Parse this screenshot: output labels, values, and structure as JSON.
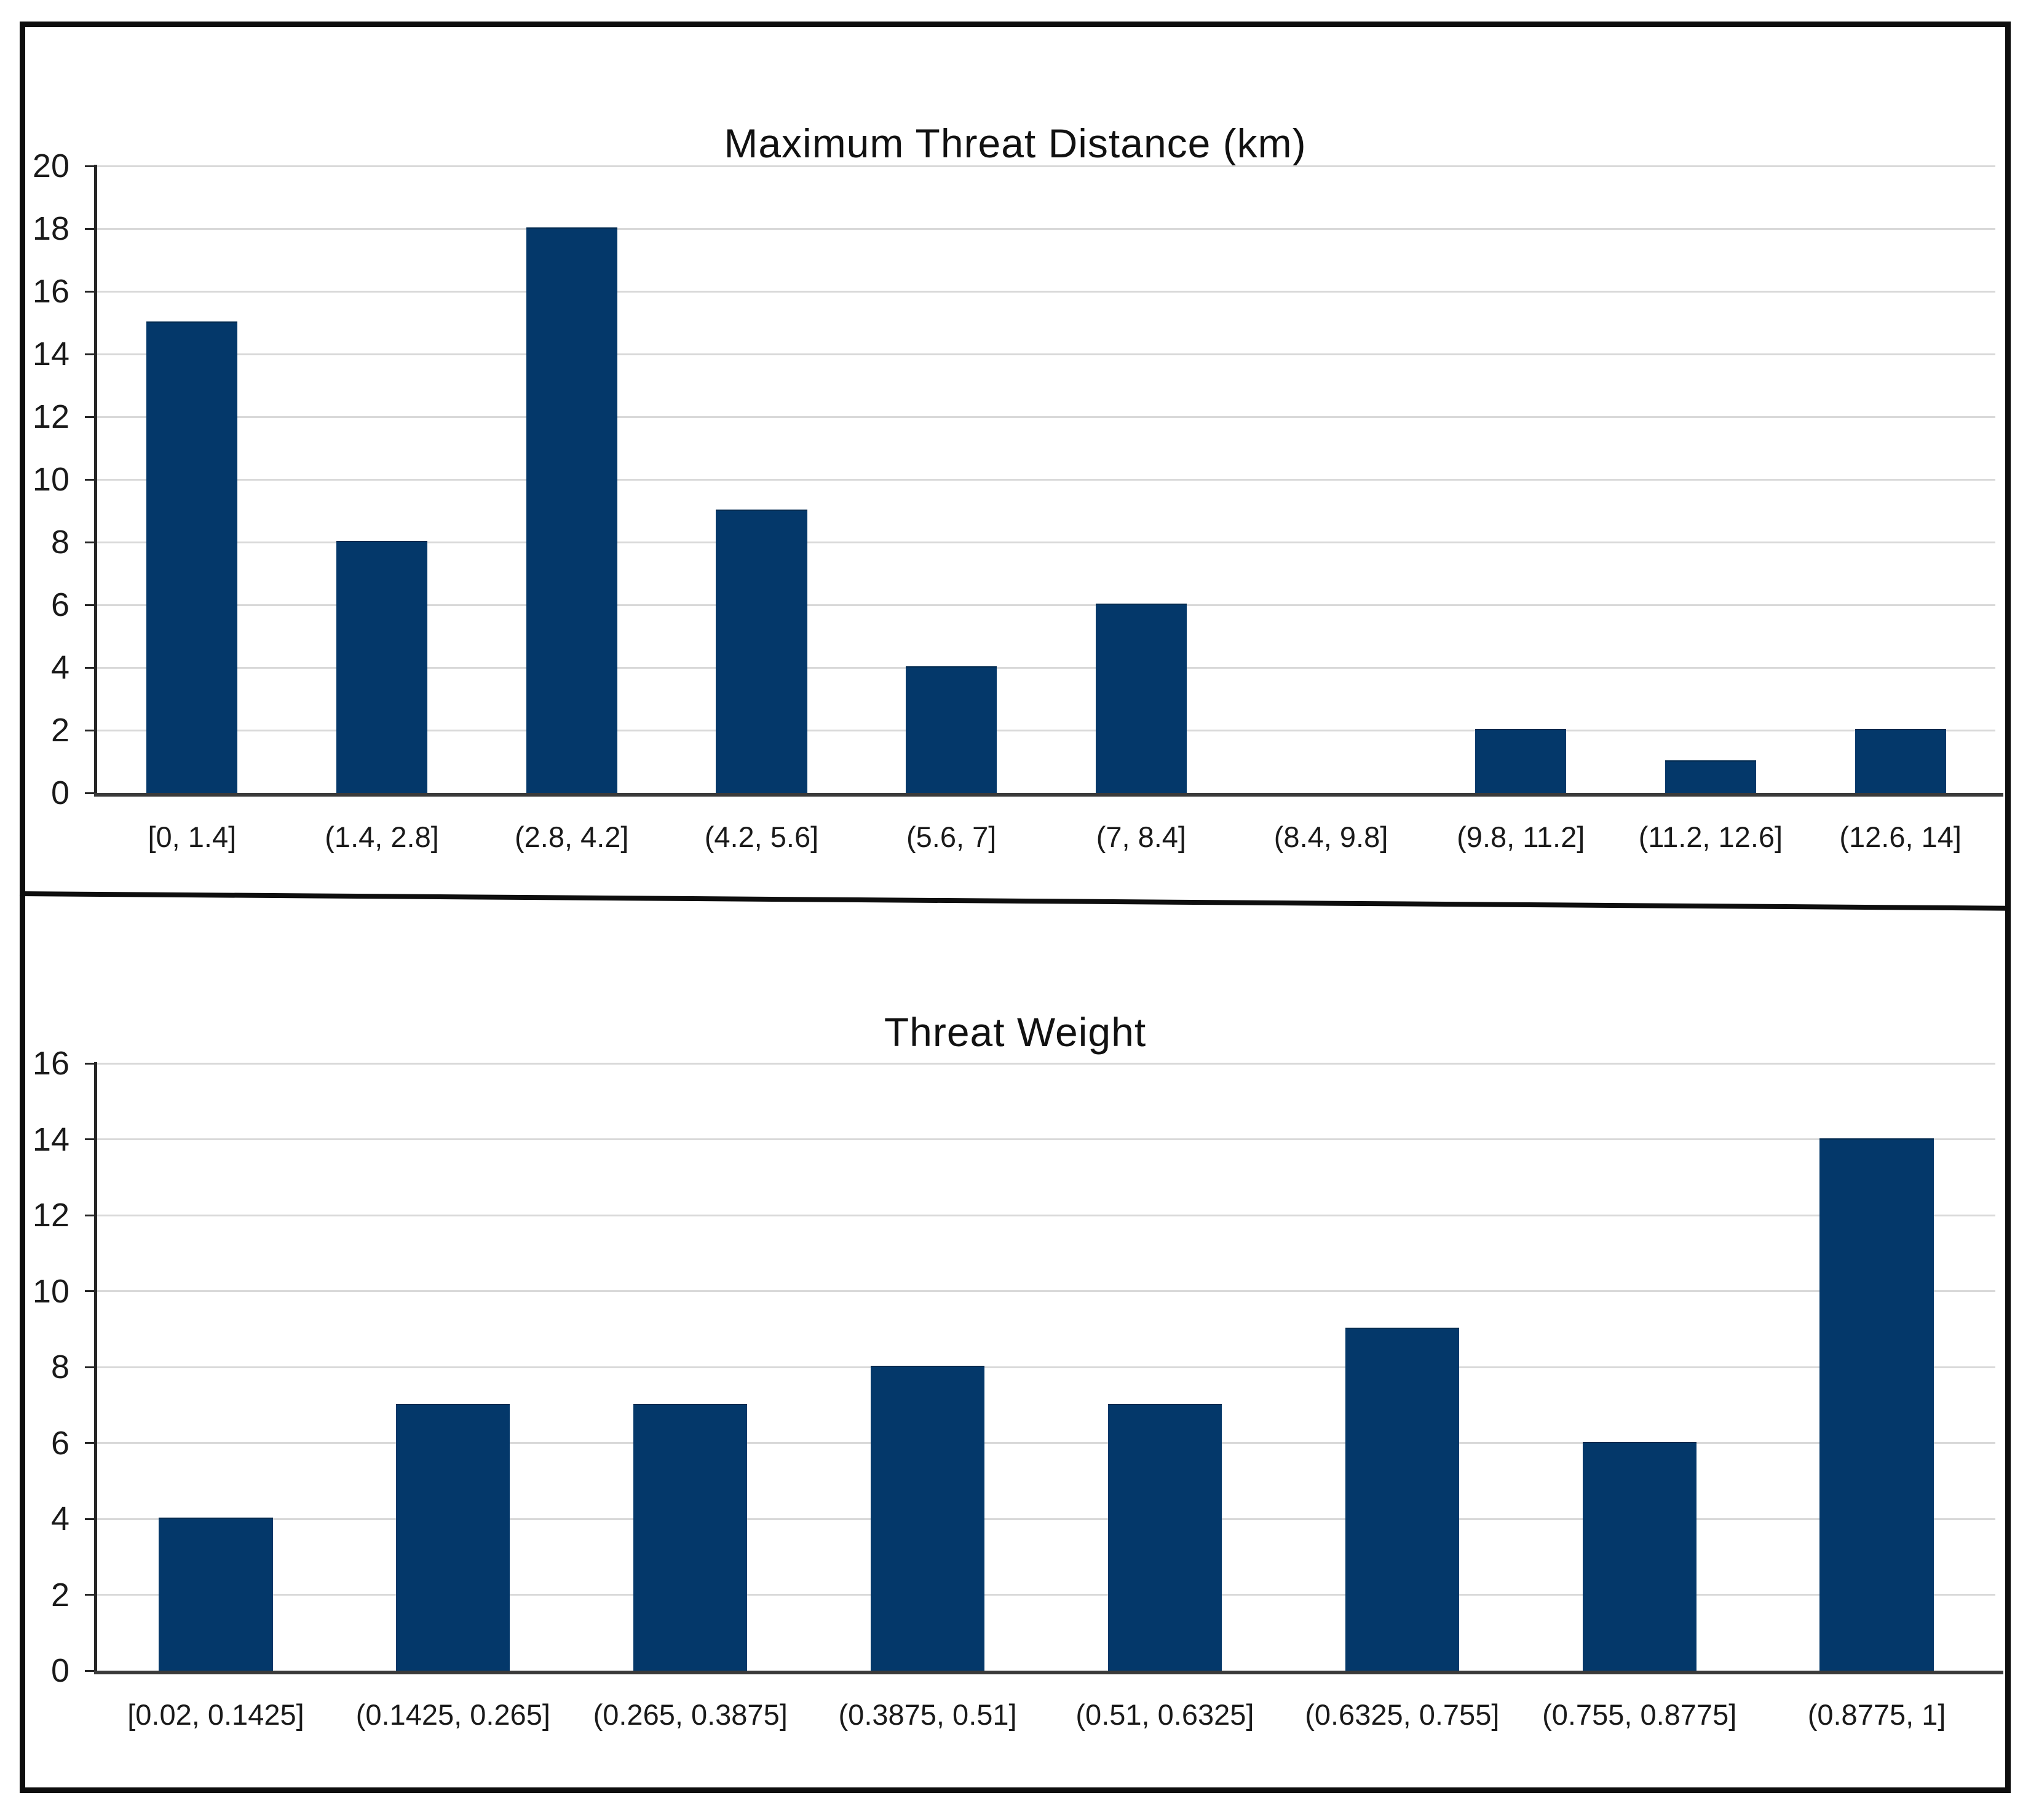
{
  "figure": {
    "background": "#FFFFFF",
    "border_color": "#0E0E0E"
  },
  "chart_data": [
    {
      "type": "bar",
      "title": "Maximum Threat Distance (km)",
      "categories": [
        "[0, 1.4]",
        "(1.4, 2.8]",
        "(2.8, 4.2]",
        "(4.2, 5.6]",
        "(5.6, 7]",
        "(7, 8.4]",
        "(8.4, 9.8]",
        "(9.8, 11.2]",
        "(11.2, 12.6]",
        "(12.6, 14]"
      ],
      "values": [
        15,
        8,
        18,
        9,
        4,
        6,
        0,
        2,
        1,
        2
      ],
      "xlabel": "",
      "ylabel": "",
      "ylim": [
        0,
        20
      ],
      "y_ticks": [
        0,
        2,
        4,
        6,
        8,
        10,
        12,
        14,
        16,
        18,
        20
      ],
      "grid": true,
      "legend": null,
      "bar_color": "#04386A",
      "grid_color": "#D9D9D9",
      "axis_color": "#262626",
      "baseline_color": "#3A3A3A",
      "text_color": "#1A1A1A",
      "bar_ratio": 0.48
    },
    {
      "type": "bar",
      "title": "Threat Weight",
      "categories": [
        "[0.02, 0.1425]",
        "(0.1425, 0.265]",
        "(0.265, 0.3875]",
        "(0.3875, 0.51]",
        "(0.51, 0.6325]",
        "(0.6325, 0.755]",
        "(0.755, 0.8775]",
        "(0.8775, 1]"
      ],
      "values": [
        4,
        7,
        7,
        8,
        7,
        9,
        6,
        14
      ],
      "xlabel": "",
      "ylabel": "",
      "ylim": [
        0,
        16
      ],
      "y_ticks": [
        0,
        2,
        4,
        6,
        8,
        10,
        12,
        14,
        16
      ],
      "grid": true,
      "legend": null,
      "bar_color": "#04386A",
      "grid_color": "#D9D9D9",
      "axis_color": "#262626",
      "baseline_color": "#3A3A3A",
      "text_color": "#1A1A1A",
      "bar_ratio": 0.48
    }
  ]
}
